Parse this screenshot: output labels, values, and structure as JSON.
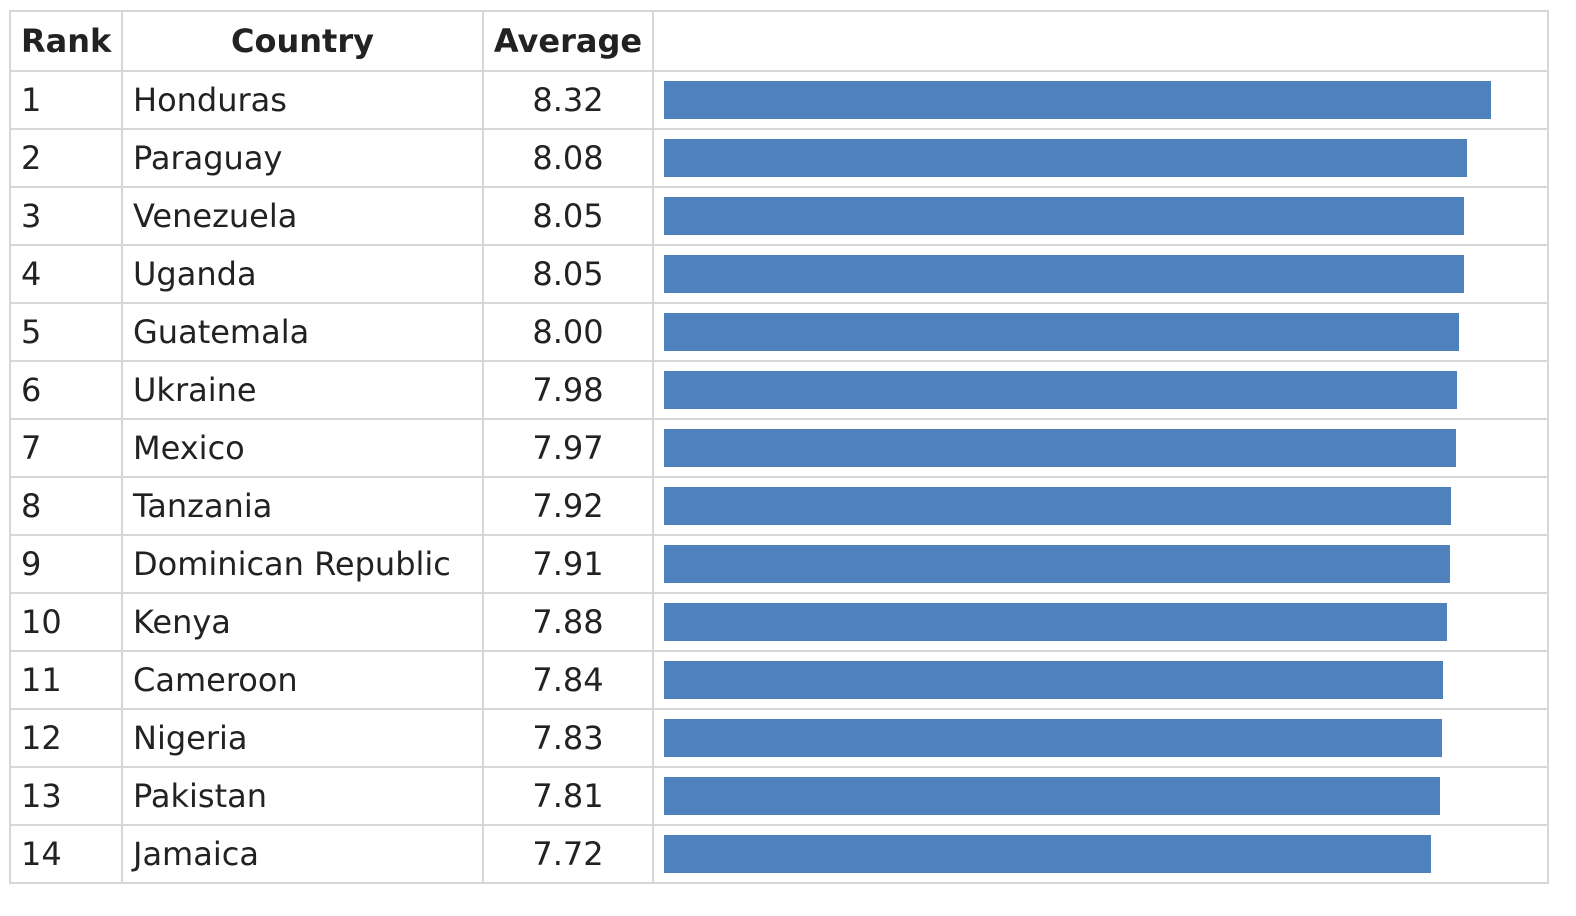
{
  "table": {
    "headers": {
      "rank": "Rank",
      "country": "Country",
      "average": "Average",
      "bar": ""
    }
  },
  "chart_data": {
    "type": "bar",
    "orientation": "horizontal",
    "bar_color": "#4f81bd",
    "columns": [
      "Rank",
      "Country",
      "Average"
    ],
    "rows": [
      {
        "rank": "1",
        "country": "Honduras",
        "average": "8.32",
        "value": 8.32
      },
      {
        "rank": "2",
        "country": "Paraguay",
        "average": "8.08",
        "value": 8.08
      },
      {
        "rank": "3",
        "country": "Venezuela",
        "average": "8.05",
        "value": 8.05
      },
      {
        "rank": "4",
        "country": "Uganda",
        "average": "8.05",
        "value": 8.05
      },
      {
        "rank": "5",
        "country": "Guatemala",
        "average": "8.00",
        "value": 8.0
      },
      {
        "rank": "6",
        "country": "Ukraine",
        "average": "7.98",
        "value": 7.98
      },
      {
        "rank": "7",
        "country": "Mexico",
        "average": "7.97",
        "value": 7.97
      },
      {
        "rank": "8",
        "country": "Tanzania",
        "average": "7.92",
        "value": 7.92
      },
      {
        "rank": "9",
        "country": "Dominican Republic",
        "average": "7.91",
        "value": 7.91
      },
      {
        "rank": "10",
        "country": "Kenya",
        "average": "7.88",
        "value": 7.88
      },
      {
        "rank": "11",
        "country": "Cameroon",
        "average": "7.84",
        "value": 7.84
      },
      {
        "rank": "12",
        "country": "Nigeria",
        "average": "7.83",
        "value": 7.83
      },
      {
        "rank": "13",
        "country": "Pakistan",
        "average": "7.81",
        "value": 7.81
      },
      {
        "rank": "14",
        "country": "Jamaica",
        "average": "7.72",
        "value": 7.72
      }
    ]
  }
}
